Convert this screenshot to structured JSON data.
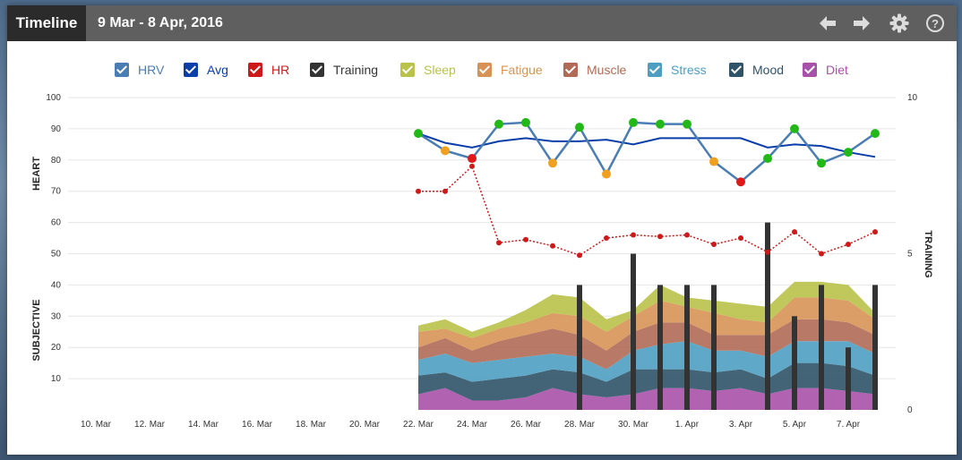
{
  "header": {
    "title": "Timeline",
    "date_range": "9 Mar - 8 Apr, 2016",
    "buttons": [
      "back-arrow-icon",
      "forward-arrow-icon",
      "gear-icon",
      "help-icon"
    ]
  },
  "legend": [
    {
      "label": "HRV",
      "color": "#4a7db3"
    },
    {
      "label": "Avg",
      "color": "#0a3ea8"
    },
    {
      "label": "HR",
      "color": "#cc1a1a"
    },
    {
      "label": "Training",
      "color": "#333333"
    },
    {
      "label": "Sleep",
      "color": "#b9c24a"
    },
    {
      "label": "Fatigue",
      "color": "#d79355"
    },
    {
      "label": "Muscle",
      "color": "#b06a55"
    },
    {
      "label": "Stress",
      "color": "#4e9ec2"
    },
    {
      "label": "Mood",
      "color": "#2f5368"
    },
    {
      "label": "Diet",
      "color": "#a851a8"
    }
  ],
  "chart_data": {
    "type": "line",
    "x_ticks": [
      "10. Mar",
      "12. Mar",
      "14. Mar",
      "16. Mar",
      "18. Mar",
      "20. Mar",
      "22. Mar",
      "24. Mar",
      "26. Mar",
      "28. Mar",
      "30. Mar",
      "1. Apr",
      "3. Apr",
      "5. Apr",
      "7. Apr"
    ],
    "x_start": "2016-03-09",
    "x_end": "2016-04-08",
    "y_left": {
      "ticks": [
        10,
        20,
        30,
        40,
        50,
        60,
        70,
        80,
        90,
        100
      ],
      "range": [
        0,
        100
      ]
    },
    "y_right": {
      "ticks": [
        0,
        5,
        10
      ],
      "range": [
        0,
        10
      ]
    },
    "axis_labels": {
      "heart": "HEART",
      "subjective": "SUBJECTIVE",
      "training": "TRAINING"
    },
    "dates": [
      "22. Mar",
      "23. Mar",
      "24. Mar",
      "25. Mar",
      "26. Mar",
      "27. Mar",
      "28. Mar",
      "29. Mar",
      "30. Mar",
      "31. Mar",
      "1. Apr",
      "2. Apr",
      "3. Apr",
      "4. Apr",
      "5. Apr",
      "6. Apr",
      "7. Apr",
      "8. Apr"
    ],
    "hrv": {
      "values": [
        88.5,
        83,
        80.5,
        91.5,
        92,
        79,
        90.5,
        75.5,
        92,
        91.5,
        91.5,
        79.5,
        73,
        80.5,
        90,
        79,
        82.5,
        88.5
      ],
      "status": [
        "green",
        "orange",
        "red",
        "green",
        "green",
        "orange",
        "green",
        "orange",
        "green",
        "green",
        "green",
        "orange",
        "red",
        "green",
        "green",
        "green",
        "green",
        "green"
      ]
    },
    "avg": [
      88.5,
      85.5,
      84,
      86,
      87,
      86,
      86,
      86.5,
      85,
      87,
      87,
      87,
      87,
      84,
      85,
      84.5,
      82.5,
      81
    ],
    "hr": [
      70,
      70,
      78,
      53.5,
      54.5,
      52.5,
      49.5,
      55,
      56,
      55.5,
      56,
      53,
      55,
      50.5,
      57,
      50,
      53,
      57
    ],
    "training": [
      {
        "date": "28. Mar",
        "value": 4
      },
      {
        "date": "30. Mar",
        "value": 5
      },
      {
        "date": "31. Mar",
        "value": 4
      },
      {
        "date": "1. Apr",
        "value": 4
      },
      {
        "date": "2. Apr",
        "value": 4
      },
      {
        "date": "4. Apr",
        "value": 6
      },
      {
        "date": "5. Apr",
        "value": 3
      },
      {
        "date": "6. Apr",
        "value": 4
      },
      {
        "date": "7. Apr",
        "value": 2
      },
      {
        "date": "8. Apr",
        "value": 4
      }
    ],
    "subjective_series": [
      {
        "name": "Diet",
        "values": [
          5,
          7,
          3,
          3,
          4,
          7,
          5,
          4,
          5,
          7,
          7,
          6,
          7,
          5,
          7,
          7,
          6,
          5
        ]
      },
      {
        "name": "Mood",
        "values": [
          6,
          5,
          6,
          7,
          7,
          6,
          7,
          5,
          8,
          6,
          6,
          6,
          6,
          5,
          8,
          8,
          8,
          6
        ]
      },
      {
        "name": "Stress",
        "values": [
          5,
          6,
          6,
          6,
          6,
          5,
          5,
          4,
          6,
          8,
          9,
          7,
          6,
          7,
          7,
          7,
          8,
          7
        ]
      },
      {
        "name": "Muscle",
        "values": [
          4,
          5,
          4,
          6,
          7,
          8,
          7,
          6,
          6,
          7,
          6,
          5,
          5,
          7,
          7,
          7,
          6,
          6
        ]
      },
      {
        "name": "Fatigue",
        "values": [
          5,
          3,
          4,
          4,
          4,
          5,
          6,
          6,
          5,
          7,
          5,
          7,
          5,
          4,
          7,
          7,
          7,
          5
        ]
      },
      {
        "name": "Sleep",
        "values": [
          2,
          3,
          2,
          2,
          4,
          6,
          6,
          4,
          2,
          5,
          3,
          4,
          5,
          5,
          5,
          5,
          5,
          2
        ]
      }
    ]
  }
}
